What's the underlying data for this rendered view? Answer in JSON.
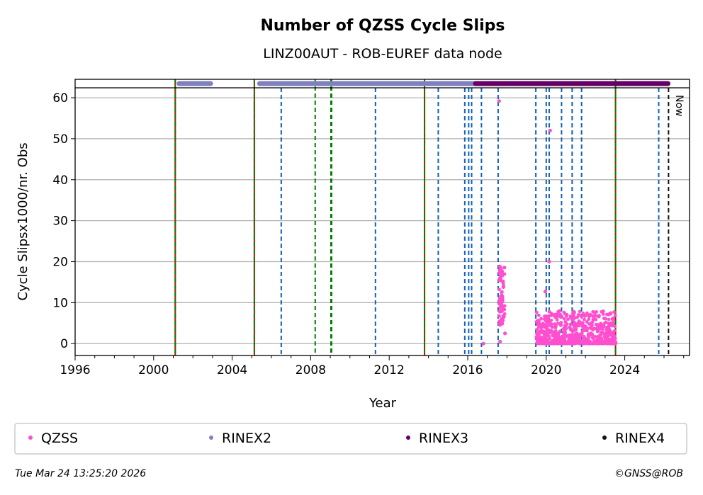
{
  "chart_data": {
    "type": "scatter",
    "title": "Number of QZSS Cycle Slips",
    "subtitle": "LINZ00AUT - ROB-EUREF data node",
    "xlabel": "Year",
    "ylabel": "Cycle Slipsx1000/nr. Obs",
    "xlim": [
      1996,
      2027.3
    ],
    "ylim": [
      -2.9,
      64.5
    ],
    "xticks": [
      1996,
      2000,
      2004,
      2008,
      2012,
      2016,
      2020,
      2024
    ],
    "yticks": [
      0,
      10,
      20,
      30,
      40,
      50,
      60
    ],
    "grid": "horizontal",
    "now_label": "Now",
    "now_year": 2026.23,
    "colors": {
      "qzss": "#ff4fcf",
      "rinex2": "#8080c0",
      "rinex3": "#660066",
      "rinex4": "#111111",
      "event_blue": "#1060b8",
      "event_green": "#008000",
      "event_red": "#e00000"
    },
    "rinex_periods": [
      {
        "series": "RINEX2",
        "start": 2001.3,
        "end": 2002.9
      },
      {
        "series": "RINEX2",
        "start": 2005.4,
        "end": 2016.4
      },
      {
        "series": "RINEX3",
        "start": 2016.4,
        "end": 2026.2
      }
    ],
    "events_red_green": [
      2001.1,
      2005.13,
      2013.8,
      2023.53
    ],
    "events_green": [
      2008.23,
      2009.05
    ],
    "events_blue": [
      2006.5,
      2011.3,
      2014.5,
      2015.85,
      2016.05,
      2016.2,
      2016.7,
      2017.55,
      2019.47,
      2020.0,
      2020.15,
      2020.78,
      2021.32,
      2021.8,
      2025.73
    ],
    "qzss_points": [
      {
        "x": 2016.8,
        "y": 0
      },
      {
        "x": 2017.6,
        "y": 59.2
      },
      {
        "x": 2020.2,
        "y": 52
      },
      {
        "x": 2020.15,
        "y": 20
      },
      {
        "x": 2019.95,
        "y": 12.7
      },
      {
        "x": 2017.65,
        "y": 0.5
      },
      {
        "x": 2017.9,
        "y": 2.5
      }
    ],
    "qzss_clusters": [
      {
        "x_start": 2017.6,
        "x_end": 2017.9,
        "y_min": 4.5,
        "y_max": 19
      },
      {
        "x_start": 2019.5,
        "x_end": 2023.55,
        "y_min": 0,
        "y_max": 8
      }
    ],
    "legend": [
      "QZSS",
      "RINEX2",
      "RINEX3",
      "RINEX4"
    ],
    "legend_placement": "bottom"
  },
  "footer": {
    "timestamp": "Tue Mar 24 13:25:20 2026",
    "credit": "©GNSS@ROB"
  }
}
